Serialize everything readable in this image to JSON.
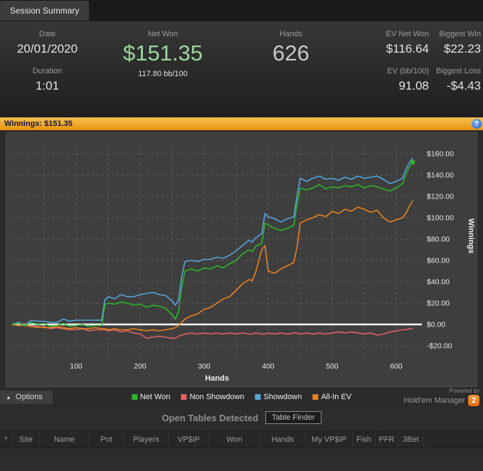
{
  "tab_bar": {
    "session_summary": "Session Summary"
  },
  "stats": {
    "date_label": "Date",
    "date_value": "20/01/2020",
    "duration_label": "Duration",
    "duration_value": "1:01",
    "net_won_label": "Net Won",
    "net_won_value": "$151.35",
    "net_won_bb": "117.80 bb/100",
    "hands_label": "Hands",
    "hands_value": "626",
    "ev_net_won_label": "EV Net Won",
    "ev_net_won_value": "$116.64",
    "ev_bb_label": "EV (bb/100)",
    "ev_bb_value": "91.08",
    "biggest_win_label": "Biggest Win",
    "biggest_win_value": "$22.23",
    "biggest_loss_label": "Biggest Loss",
    "biggest_loss_value": "-$4.43"
  },
  "winnings_bar": {
    "text": "Winnings: $151.35",
    "info_icon": "?"
  },
  "chart_data": {
    "type": "line",
    "title": "",
    "xlabel": "Hands",
    "ylabel": "Winnings",
    "xlim": [
      0,
      640
    ],
    "ylim": [
      -30,
      170
    ],
    "grid_on": true,
    "grid_color": "#5d5d5d",
    "grid_x_step": 50,
    "zero_line_color": "#ffffff",
    "xticks": [
      100,
      200,
      300,
      400,
      500,
      600
    ],
    "yticks": [
      {
        "value": 160,
        "label": "$160.00"
      },
      {
        "value": 140,
        "label": "$140.00"
      },
      {
        "value": 120,
        "label": "$120.00"
      },
      {
        "value": 100,
        "label": "$100.00"
      },
      {
        "value": 80,
        "label": "$80.00"
      },
      {
        "value": 60,
        "label": "$60.00"
      },
      {
        "value": 40,
        "label": "$40.00"
      },
      {
        "value": 20,
        "label": "$20.00"
      },
      {
        "value": 0,
        "label": "$0.00"
      },
      {
        "value": -20,
        "label": "-$20.00"
      }
    ],
    "x": [
      0,
      10,
      20,
      30,
      40,
      50,
      60,
      70,
      80,
      90,
      100,
      110,
      120,
      130,
      140,
      145,
      150,
      160,
      170,
      180,
      190,
      200,
      210,
      220,
      230,
      240,
      250,
      255,
      260,
      265,
      270,
      280,
      290,
      300,
      310,
      320,
      330,
      340,
      350,
      360,
      370,
      375,
      380,
      390,
      395,
      400,
      410,
      420,
      430,
      440,
      445,
      450,
      460,
      470,
      480,
      490,
      500,
      510,
      520,
      530,
      540,
      550,
      560,
      570,
      580,
      590,
      600,
      610,
      615,
      620,
      626
    ],
    "series": [
      {
        "name": "Net Won",
        "color": "#2eb42e",
        "values": [
          0,
          1,
          -1,
          2,
          0,
          1,
          -2,
          -1,
          1,
          -2,
          -1,
          0,
          -2,
          -1,
          -1,
          18,
          20,
          19,
          21,
          20,
          18,
          19,
          16,
          18,
          17,
          15,
          9,
          5,
          12,
          35,
          50,
          52,
          50,
          53,
          52,
          55,
          53,
          57,
          60,
          66,
          70,
          68,
          73,
          76,
          95,
          93,
          90,
          88,
          90,
          93,
          112,
          128,
          126,
          128,
          131,
          127,
          129,
          128,
          130,
          129,
          131,
          128,
          130,
          129,
          127,
          125,
          128,
          132,
          140,
          147,
          152
        ]
      },
      {
        "name": "Non Showdown",
        "color": "#e46464",
        "values": [
          0,
          -1,
          0,
          -2,
          -3,
          -2,
          -4,
          -3,
          -4,
          -5,
          -5,
          -4,
          -6,
          -5,
          -5,
          -5,
          -6,
          -5,
          -7,
          -6,
          -8,
          -9,
          -13,
          -12,
          -11,
          -12,
          -13,
          -13,
          -11,
          -10,
          -9,
          -8,
          -9,
          -8,
          -9,
          -8,
          -9,
          -8,
          -9,
          -8,
          -9,
          -9,
          -8,
          -9,
          -9,
          -8,
          -9,
          -8,
          -9,
          -8,
          -8,
          -9,
          -8,
          -9,
          -8,
          -9,
          -8,
          -7,
          -8,
          -7,
          -8,
          -9,
          -8,
          -10,
          -9,
          -7,
          -6,
          -5,
          -5,
          -4,
          -4
        ]
      },
      {
        "name": "Showdown",
        "color": "#56a5dc",
        "values": [
          0,
          2,
          -1,
          4,
          3,
          3,
          2,
          2,
          5,
          3,
          4,
          4,
          4,
          4,
          4,
          23,
          26,
          24,
          28,
          26,
          26,
          28,
          29,
          30,
          28,
          27,
          22,
          18,
          23,
          45,
          59,
          60,
          59,
          61,
          61,
          63,
          62,
          65,
          69,
          74,
          79,
          77,
          81,
          85,
          104,
          101,
          99,
          96,
          99,
          101,
          120,
          137,
          134,
          137,
          139,
          136,
          137,
          135,
          138,
          136,
          139,
          137,
          138,
          139,
          136,
          132,
          134,
          137,
          145,
          151,
          156
        ]
      },
      {
        "name": "All-In EV",
        "color": "#e8821e",
        "values": [
          0,
          -1,
          -1,
          -2,
          -2,
          -3,
          -3,
          -2,
          -3,
          -4,
          -3,
          -4,
          -4,
          -3,
          -4,
          -4,
          -5,
          -4,
          -5,
          -5,
          -4,
          -5,
          -6,
          -5,
          -6,
          -5,
          -4,
          -3,
          -1,
          2,
          5,
          8,
          10,
          14,
          16,
          20,
          24,
          26,
          32,
          38,
          42,
          41,
          48,
          70,
          74,
          50,
          48,
          52,
          55,
          58,
          72,
          95,
          98,
          100,
          103,
          101,
          106,
          104,
          108,
          106,
          110,
          108,
          105,
          107,
          100,
          96,
          98,
          100,
          104,
          110,
          116
        ]
      }
    ]
  },
  "legend": [
    {
      "label": "Net Won",
      "color": "#2eb42e"
    },
    {
      "label": "Non Showdown",
      "color": "#e46464"
    },
    {
      "label": "Showdown",
      "color": "#56a5dc"
    },
    {
      "label": "All-In EV",
      "color": "#e8821e"
    }
  ],
  "branding": {
    "powered_by": "Powered by",
    "name": "Hold'em Manager",
    "logo": "2"
  },
  "options": {
    "label": "Options",
    "arrow": "▲"
  },
  "open_tables": {
    "title": "Open Tables Detected",
    "button": "Table Finder",
    "columns": [
      "*",
      "Site",
      "Name",
      "Pot",
      "Players",
      "VP$IP",
      "Won",
      "Hands",
      "My VP$IP",
      "Fish",
      "PFR",
      "3Bet"
    ]
  }
}
